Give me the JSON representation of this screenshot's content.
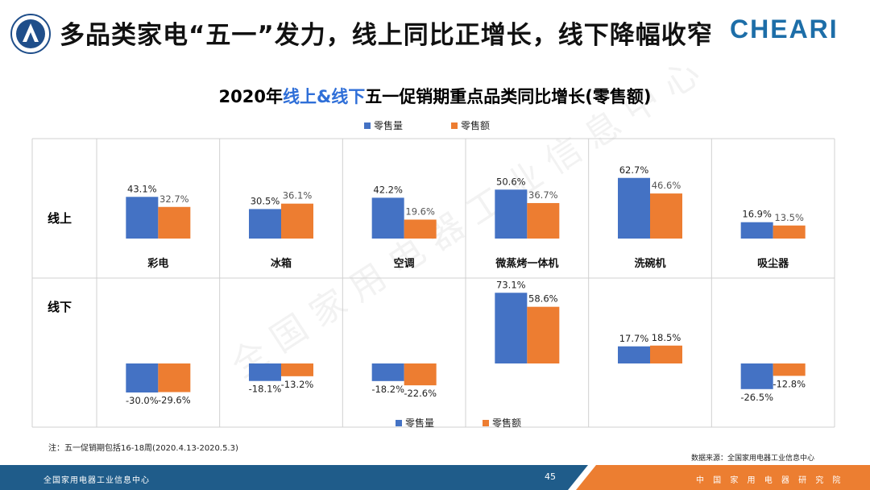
{
  "header": {
    "title": "多品类家电“五一”发力，线上同比正增长，线下降幅收窄",
    "brand": "CHEARI"
  },
  "colors": {
    "blue": "#4472c4",
    "orange": "#ed7d31",
    "footer_blue": "#1f5c8a",
    "footer_orange": "#ec7e31"
  },
  "chart_data": {
    "type": "bar",
    "title_prefix": "2020年",
    "title_highlight": "线上&线下",
    "title_suffix": "五一促销期重点品类同比增长(零售额)",
    "categories": [
      "彩电",
      "冰箱",
      "空调",
      "微蒸烤一体机",
      "洗碗机",
      "吸尘器"
    ],
    "rows": [
      {
        "name": "线上",
        "series": [
          {
            "name": "零售量",
            "values": [
              43.1,
              30.5,
              42.2,
              50.6,
              62.7,
              16.9
            ],
            "labels": [
              "43.1%",
              "30.5%",
              "42.2%",
              "50.6%",
              "62.7%",
              "16.9%"
            ]
          },
          {
            "name": "零售额",
            "values": [
              32.7,
              36.1,
              19.6,
              36.7,
              46.6,
              13.5
            ],
            "labels": [
              "32.7%",
              "36.1%",
              "19.6%",
              "36.7%",
              "46.6%",
              "13.5%"
            ]
          }
        ]
      },
      {
        "name": "线下",
        "series": [
          {
            "name": "零售量",
            "values": [
              -30.0,
              -18.1,
              -18.2,
              73.1,
              17.7,
              -26.5
            ],
            "labels": [
              "-30.0%",
              "-18.1%",
              "-18.2%",
              "73.1%",
              "17.7%",
              "-26.5%"
            ]
          },
          {
            "name": "零售额",
            "values": [
              -29.6,
              -13.2,
              -22.6,
              58.6,
              18.5,
              -12.8
            ],
            "labels": [
              "-29.6%",
              "-13.2%",
              "-22.6%",
              "58.6%",
              "18.5%",
              "-12.8%"
            ]
          }
        ]
      }
    ],
    "legend": [
      "零售量",
      "零售额"
    ],
    "watermark": "全国家用电器工业信息中心"
  },
  "notes": {
    "footnote": "注：五一促销期包括16-18周(2020.4.13-2020.5.3)",
    "source": "数据来源：全国家用电器工业信息中心"
  },
  "footer": {
    "left": "全国家用电器工业信息中心",
    "page": "45",
    "right": "中 国 家 用 电 器 研 究 院"
  }
}
